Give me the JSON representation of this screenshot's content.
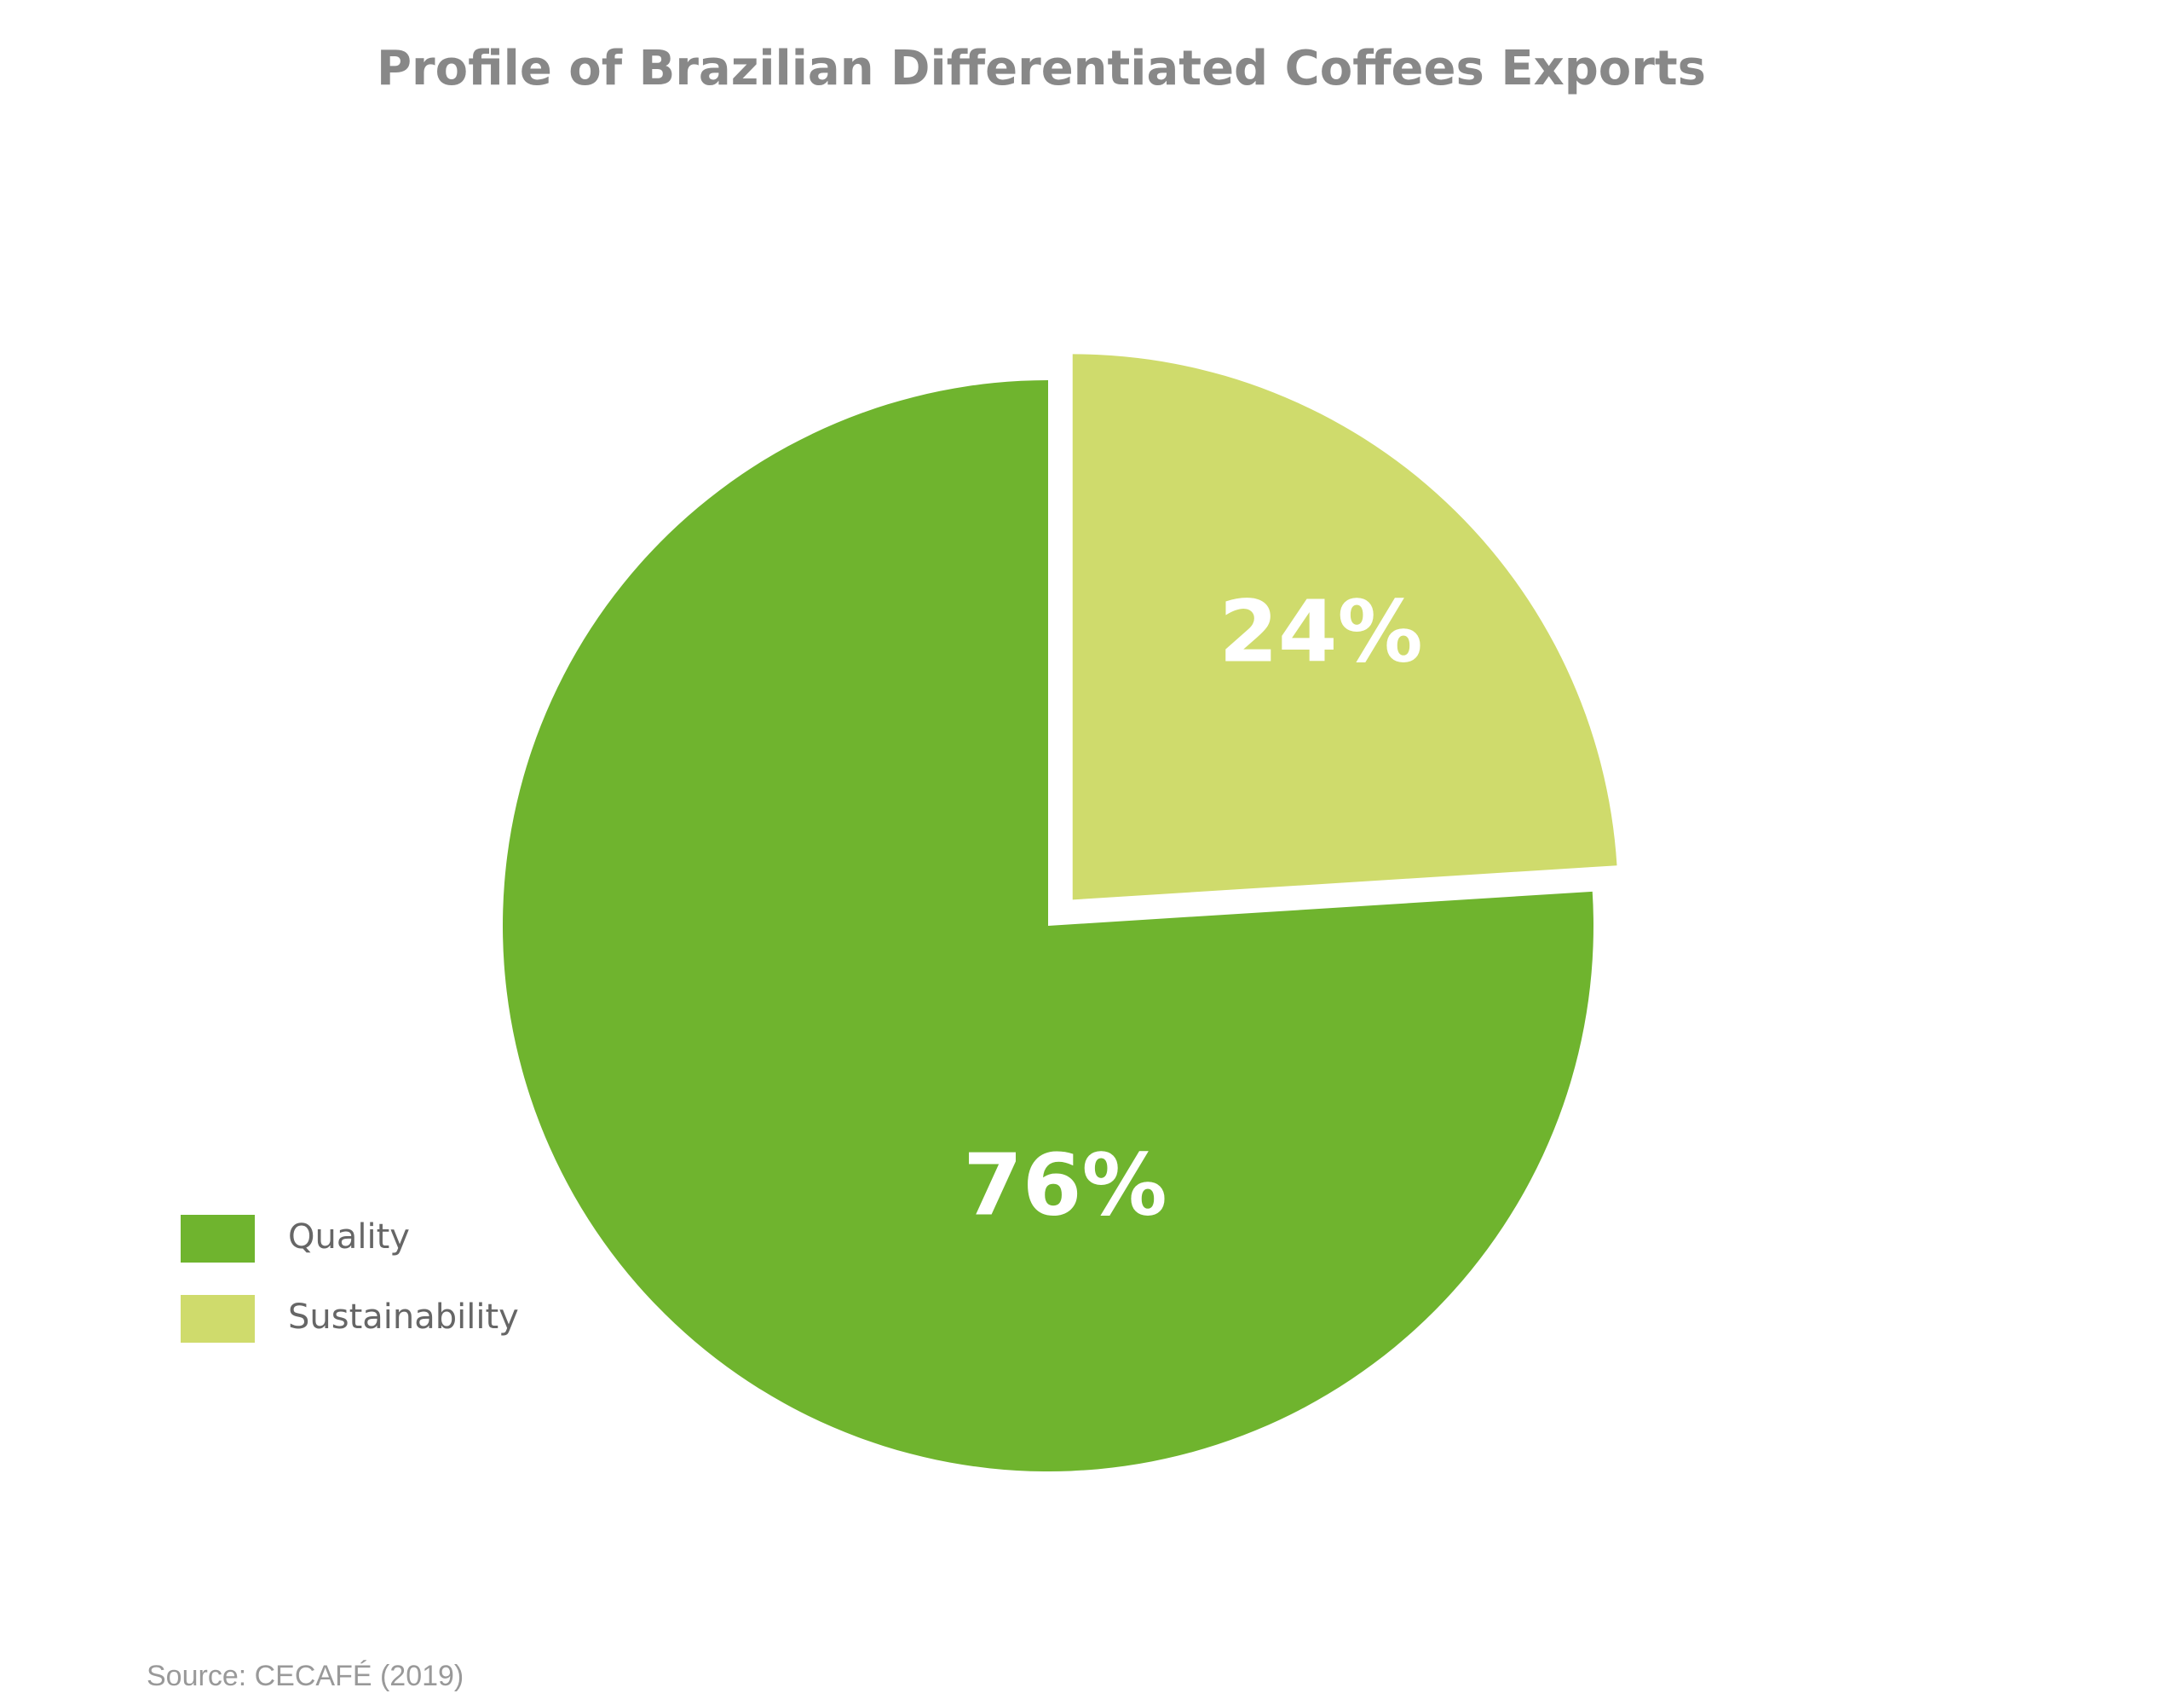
{
  "chart_data": {
    "type": "pie",
    "title": "Profile of Brazilian Differentiated Coffees Exports",
    "categories": [
      "Quality",
      "Sustainability"
    ],
    "values": [
      76,
      24
    ],
    "value_labels": [
      "76%",
      "24%"
    ],
    "colors": [
      "#6fb42e",
      "#cfdb6c"
    ],
    "source": "Source: CECAFÉ (2019)"
  }
}
